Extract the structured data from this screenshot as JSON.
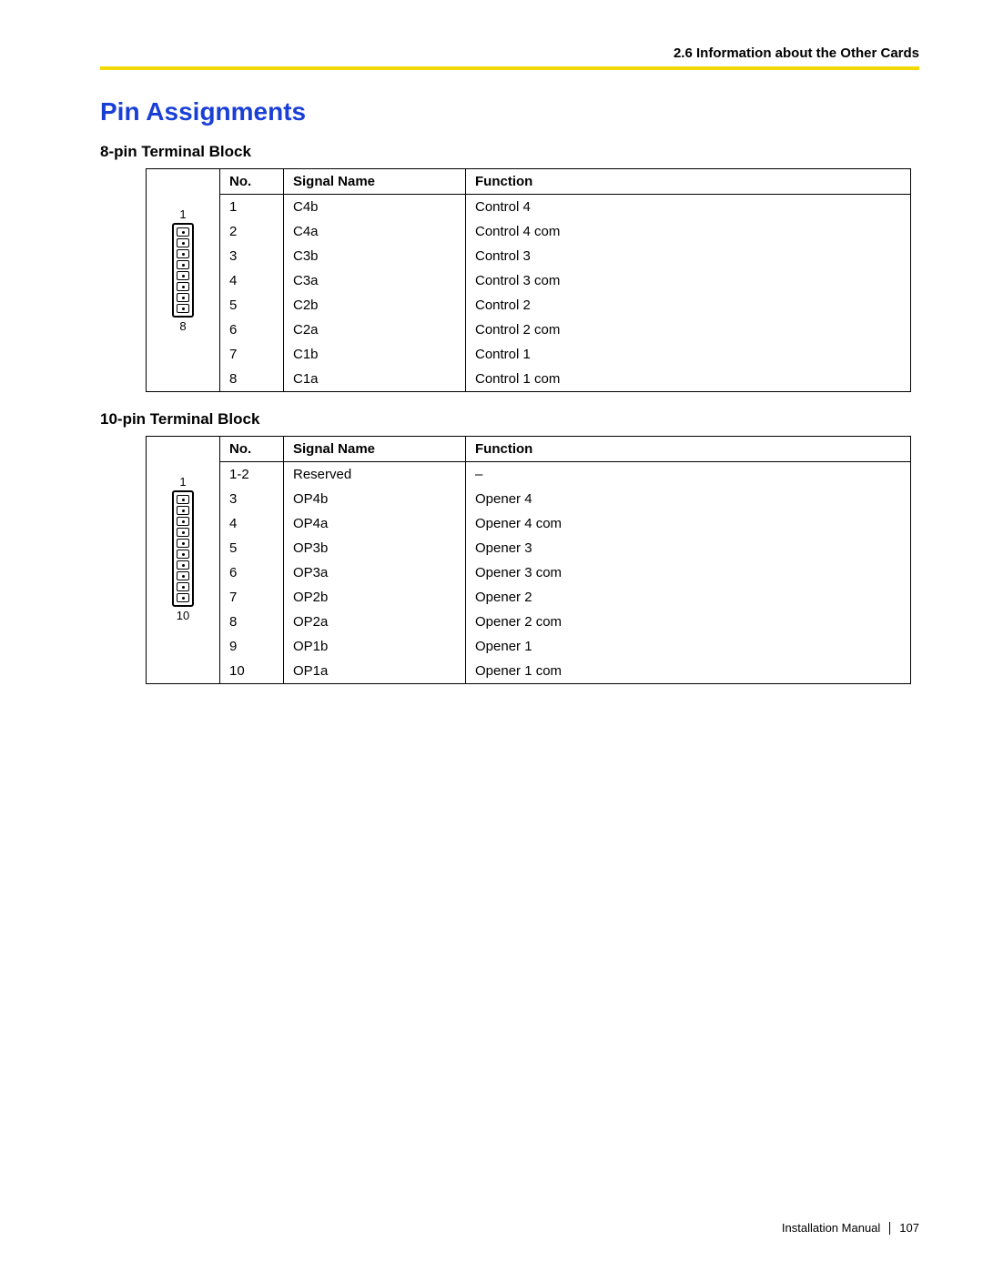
{
  "header": {
    "section": "2.6 Information about the Other Cards"
  },
  "title": "Pin Assignments",
  "footer": {
    "doc": "Installation Manual",
    "page": "107"
  },
  "table_headers": {
    "no": "No.",
    "signal": "Signal Name",
    "function": "Function"
  },
  "block8": {
    "title": "8-pin Terminal Block",
    "pins": 8,
    "top_label": "1",
    "bot_label": "8",
    "rows": [
      {
        "no": "1",
        "sig": "C4b",
        "fun": "Control 4"
      },
      {
        "no": "2",
        "sig": "C4a",
        "fun": "Control 4 com"
      },
      {
        "no": "3",
        "sig": "C3b",
        "fun": "Control 3"
      },
      {
        "no": "4",
        "sig": "C3a",
        "fun": "Control 3 com"
      },
      {
        "no": "5",
        "sig": "C2b",
        "fun": "Control 2"
      },
      {
        "no": "6",
        "sig": "C2a",
        "fun": "Control 2 com"
      },
      {
        "no": "7",
        "sig": "C1b",
        "fun": "Control 1"
      },
      {
        "no": "8",
        "sig": "C1a",
        "fun": "Control 1 com"
      }
    ]
  },
  "block10": {
    "title": "10-pin Terminal Block",
    "pins": 10,
    "top_label": "1",
    "bot_label": "10",
    "rows": [
      {
        "no": "1-2",
        "sig": "Reserved",
        "fun": "–"
      },
      {
        "no": "3",
        "sig": "OP4b",
        "fun": "Opener 4"
      },
      {
        "no": "4",
        "sig": "OP4a",
        "fun": "Opener 4 com"
      },
      {
        "no": "5",
        "sig": "OP3b",
        "fun": "Opener 3"
      },
      {
        "no": "6",
        "sig": "OP3a",
        "fun": "Opener 3 com"
      },
      {
        "no": "7",
        "sig": "OP2b",
        "fun": "Opener 2"
      },
      {
        "no": "8",
        "sig": "OP2a",
        "fun": "Opener 2 com"
      },
      {
        "no": "9",
        "sig": "OP1b",
        "fun": "Opener 1"
      },
      {
        "no": "10",
        "sig": "OP1a",
        "fun": "Opener 1 com"
      }
    ]
  }
}
